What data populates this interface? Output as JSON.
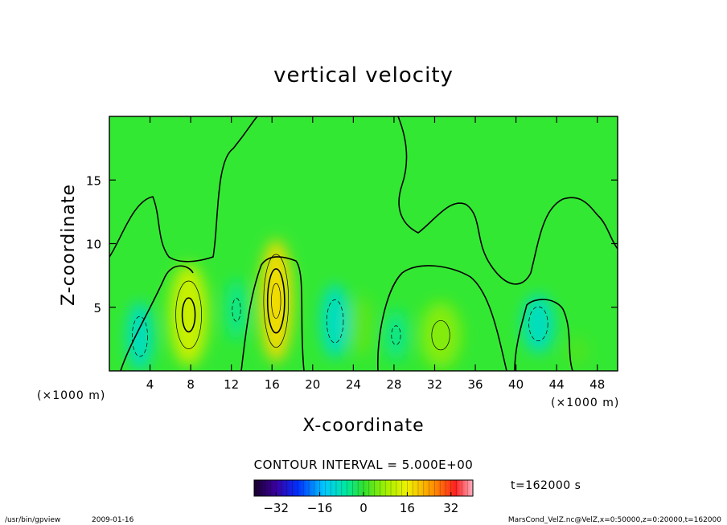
{
  "chart_data": {
    "type": "heatmap",
    "title": "vertical velocity",
    "xlabel": "X-coordinate",
    "ylabel": "Z-coordinate",
    "x_unit_left": "(×1000 m)",
    "x_unit_right": "(×1000 m)",
    "xlim": [
      0,
      50
    ],
    "ylim": [
      0,
      20
    ],
    "x_ticks": [
      4,
      8,
      12,
      16,
      20,
      24,
      28,
      32,
      36,
      40,
      44,
      48
    ],
    "y_ticks": [
      5,
      10,
      15
    ],
    "contour_interval_text": "CONTOUR INTERVAL = 5.000E+00",
    "contour_interval": 5,
    "colorbar": {
      "min": -40,
      "max": 40,
      "tick_values": [
        -32,
        -16,
        0,
        16,
        32
      ]
    },
    "time_label": "t=162000 s",
    "cells": [
      {
        "x": 3.0,
        "z": 2.7,
        "value": -9,
        "rx": 1.3,
        "rz": 2.7
      },
      {
        "x": 7.8,
        "z": 4.4,
        "value": 12,
        "rx": 1.9,
        "rz": 4.0
      },
      {
        "x": 12.5,
        "z": 4.8,
        "value": -5,
        "rx": 1.1,
        "rz": 2.4
      },
      {
        "x": 16.4,
        "z": 5.5,
        "value": 18,
        "rx": 1.6,
        "rz": 4.8
      },
      {
        "x": 22.2,
        "z": 3.9,
        "value": -9,
        "rx": 1.4,
        "rz": 2.9
      },
      {
        "x": 24.8,
        "z": 3.5,
        "value": 3,
        "rx": 1.2,
        "rz": 2.4
      },
      {
        "x": 28.2,
        "z": 2.8,
        "value": -5,
        "rx": 1.2,
        "rz": 2.0
      },
      {
        "x": 32.6,
        "z": 2.8,
        "value": 6,
        "rx": 2.0,
        "rz": 2.6
      },
      {
        "x": 42.2,
        "z": 3.7,
        "value": -9,
        "rx": 1.6,
        "rz": 2.3
      },
      {
        "x": 46.0,
        "z": 1.5,
        "value": 2,
        "rx": 1.2,
        "rz": 1.2
      }
    ]
  },
  "footer": {
    "program": "/usr/bin/gpview",
    "date": "2009-01-16",
    "source": "MarsCond_VelZ.nc@VelZ,x=0:50000,z=0:20000,t=162000"
  }
}
